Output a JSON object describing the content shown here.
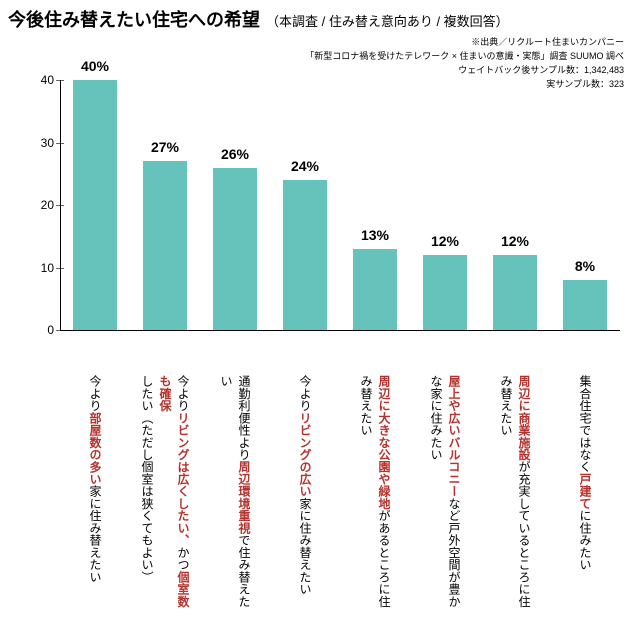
{
  "title": {
    "main": "今後住み替えたい住宅への希望",
    "sub": "（本調査 / 住み替え意向あり / 複数回答）",
    "main_fontsize": 18,
    "sub_fontsize": 13,
    "color": "#000000"
  },
  "source": {
    "lines": [
      "※出典／リクルート住まいカンパニー",
      "「新型コロナ禍を受けたテレワーク × 住まいの意識・実態」調査 SUUMO 調べ",
      "ウェイトバック後サンプル数：1,342,483",
      "実サンプル数：323"
    ],
    "fontsize": 9,
    "color": "#000000"
  },
  "chart": {
    "type": "bar",
    "ylim": [
      0,
      40
    ],
    "yticks": [
      0,
      10,
      20,
      30,
      40
    ],
    "ytick_fontsize": 12,
    "axis_color": "#000000",
    "background_color": "#ffffff",
    "bar_color": "#65c3bb",
    "bar_width_ratio": 0.64,
    "value_label_fontsize": 14,
    "value_label_suffix": "%",
    "values": [
      40,
      27,
      26,
      24,
      13,
      12,
      12,
      8
    ],
    "value_labels": [
      "40%",
      "27%",
      "26%",
      "24%",
      "13%",
      "12%",
      "12%",
      "8%"
    ],
    "categories": [
      {
        "segments": [
          {
            "text": "今より",
            "color": "#000000"
          },
          {
            "text": "部屋数の多い",
            "color": "#b5332e"
          },
          {
            "text": "家に住み替えたい",
            "color": "#000000"
          }
        ]
      },
      {
        "segments": [
          {
            "text": "今より",
            "color": "#000000"
          },
          {
            "text": "リビングは広くしたい、",
            "color": "#b5332e"
          },
          {
            "text": "かつ",
            "color": "#000000"
          },
          {
            "text": "個室数も確保",
            "color": "#b5332e"
          },
          {
            "text": "したい（ただし個室は狭くてもよい）",
            "color": "#000000"
          }
        ]
      },
      {
        "segments": [
          {
            "text": "通勤利便性より",
            "color": "#000000"
          },
          {
            "text": "周辺環境重視",
            "color": "#b5332e"
          },
          {
            "text": "で住み替えたい",
            "color": "#000000"
          }
        ]
      },
      {
        "segments": [
          {
            "text": "今より",
            "color": "#000000"
          },
          {
            "text": "リビングの広い",
            "color": "#b5332e"
          },
          {
            "text": "家に住み替えたい",
            "color": "#000000"
          }
        ]
      },
      {
        "segments": [
          {
            "text": "周辺に大きな公園や緑地",
            "color": "#b5332e"
          },
          {
            "text": "があるところに住み替えたい",
            "color": "#000000"
          }
        ]
      },
      {
        "segments": [
          {
            "text": "屋上や広いバルコニー",
            "color": "#b5332e"
          },
          {
            "text": "など戸外空間が豊かな家に住みたい",
            "color": "#000000"
          }
        ]
      },
      {
        "segments": [
          {
            "text": "周辺に商業施設",
            "color": "#b5332e"
          },
          {
            "text": "が充実しているところに住み替えたい",
            "color": "#000000"
          }
        ]
      },
      {
        "segments": [
          {
            "text": "集合住宅ではなく",
            "color": "#000000"
          },
          {
            "text": "戸建て",
            "color": "#b5332e"
          },
          {
            "text": "に住みたい",
            "color": "#000000"
          }
        ]
      }
    ],
    "category_fontsize": 12,
    "category_highlight_color": "#b5332e",
    "category_normal_color": "#000000"
  }
}
